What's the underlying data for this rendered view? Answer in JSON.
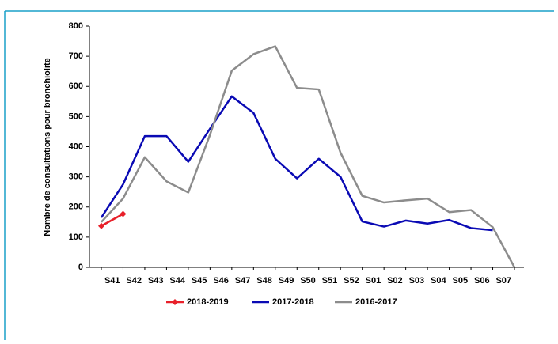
{
  "chart_data": {
    "type": "line",
    "y_label": "Nombre de consultations pour bronchiolite",
    "categories": [
      "S41",
      "S42",
      "S43",
      "S44",
      "S45",
      "S46",
      "S47",
      "S48",
      "S49",
      "S50",
      "S51",
      "S52",
      "S01",
      "S02",
      "S03",
      "S04",
      "S05",
      "S06",
      "S07",
      null
    ],
    "series": [
      {
        "name": "2018-2019",
        "color": "#e8202a",
        "marker": "diamond",
        "values": [
          137,
          177,
          null,
          null,
          null,
          null,
          null,
          null,
          null,
          null,
          null,
          null,
          null,
          null,
          null,
          null,
          null,
          null,
          null,
          null
        ]
      },
      {
        "name": "2017-2018",
        "color": "#0a0ab4",
        "values": [
          165,
          275,
          435,
          435,
          350,
          460,
          567,
          512,
          360,
          295,
          360,
          300,
          152,
          135,
          155,
          145,
          157,
          130,
          123,
          null
        ]
      },
      {
        "name": "2016-2017",
        "color": "#8c8c8c",
        "values": [
          150,
          228,
          365,
          285,
          248,
          440,
          652,
          707,
          733,
          595,
          590,
          380,
          237,
          215,
          222,
          228,
          183,
          190,
          133,
          0
        ]
      }
    ],
    "ylim": [
      0,
      800
    ],
    "yticks": [
      0,
      100,
      200,
      300,
      400,
      500,
      600,
      700,
      800
    ],
    "legend": "bottom"
  }
}
